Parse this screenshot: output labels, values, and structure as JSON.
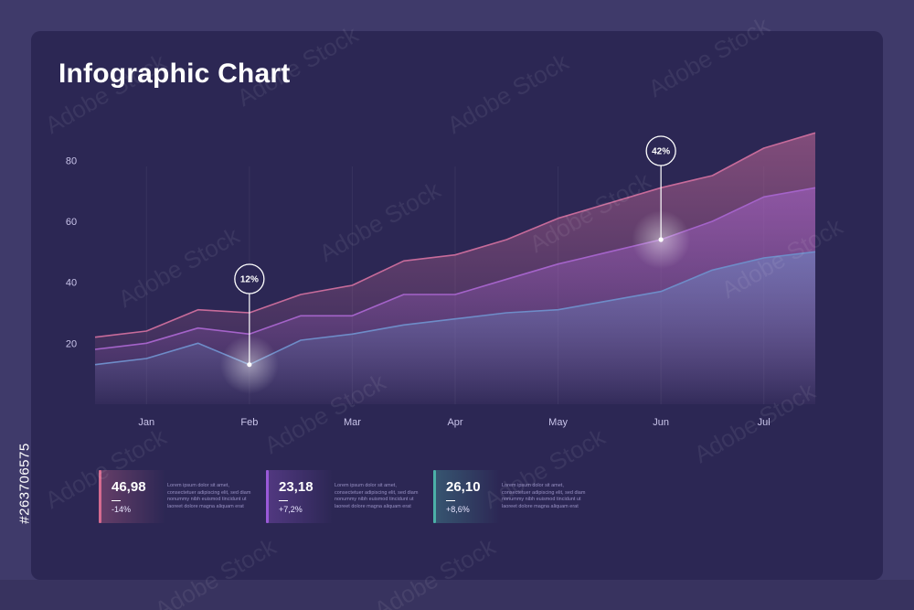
{
  "title": "Infographic Chart",
  "chart_data": {
    "type": "area",
    "title": "Infographic Chart",
    "xlabel": "",
    "ylabel": "",
    "categories": [
      "Jan",
      "Feb",
      "Mar",
      "Apr",
      "May",
      "Jun",
      "Jul"
    ],
    "yticks": [
      20,
      40,
      60,
      80
    ],
    "ylim": [
      0,
      90
    ],
    "grid": "vertical",
    "x": [
      0,
      0.5,
      1,
      1.5,
      2,
      2.5,
      3,
      3.5,
      4,
      4.5,
      5,
      5.5,
      6,
      6.5,
      7
    ],
    "series": [
      {
        "color": "#c76b9a",
        "values": [
          22,
          24,
          31,
          30,
          36,
          39,
          47,
          49,
          54,
          61,
          66,
          71,
          75,
          84,
          89
        ]
      },
      {
        "color": "#a463c9",
        "values": [
          18,
          20,
          25,
          23,
          29,
          29,
          36,
          36,
          41,
          46,
          50,
          54,
          60,
          68,
          71
        ]
      },
      {
        "color": "#6e8cc8",
        "values": [
          13,
          15,
          20,
          13,
          21,
          23,
          26,
          28,
          30,
          31,
          34,
          37,
          44,
          48,
          50
        ]
      }
    ],
    "annotations": [
      {
        "label": "12%",
        "x": 1.5,
        "series": 2
      },
      {
        "label": "42%",
        "x": 5.5,
        "series": 1
      }
    ]
  },
  "stats": [
    {
      "value": "46,98",
      "change": "-14%",
      "color": "#d46a8f",
      "desc": "Lorem ipsum dolor sit amet, consectetuer adipiscing elit, sed diam nonummy nibh euismod tincidunt ut laoreet dolore magna aliquam erat"
    },
    {
      "value": "23,18",
      "change": "+7,2%",
      "color": "#9a5ad8",
      "desc": "Lorem ipsum dolor sit amet, consectetuer adipiscing elit, sed diam nonummy nibh euismod tincidunt ut laoreet dolore magna aliquam erat"
    },
    {
      "value": "26,10",
      "change": "+8,6%",
      "color": "#4bb0a8",
      "desc": "Lorem ipsum dolor sit amet, consectetuer adipiscing elit, sed diam nonummy nibh euismod tincidunt ut laoreet dolore magna aliquam erat"
    }
  ],
  "watermark": "Adobe Stock",
  "source_id": "#263706575"
}
